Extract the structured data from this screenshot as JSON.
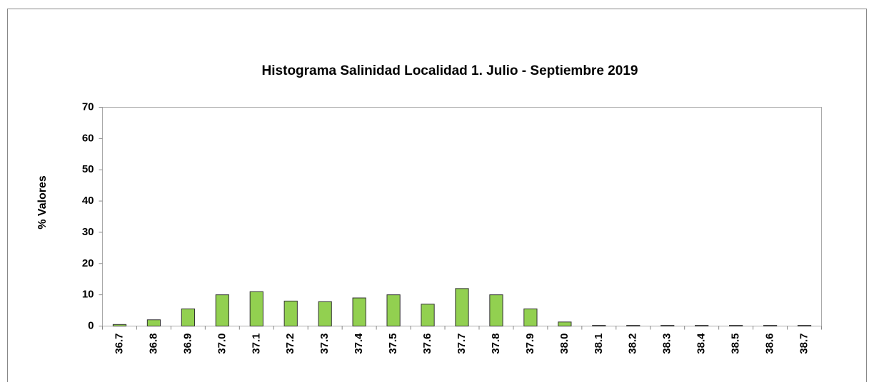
{
  "chart_data": {
    "type": "bar",
    "title": "Histograma Salinidad Localidad 1. Julio - Septiembre 2019",
    "y_label": "% Valores",
    "categories": [
      "36.7",
      "36.8",
      "36.9",
      "37.0",
      "37.1",
      "37.2",
      "37.3",
      "37.4",
      "37.5",
      "37.6",
      "37.7",
      "37.8",
      "37.9",
      "38.0",
      "38.1",
      "38.2",
      "38.3",
      "38.4",
      "38.5",
      "38.6",
      "38.7"
    ],
    "values": [
      0.5,
      2,
      5.5,
      10,
      11,
      8,
      7.8,
      9,
      10,
      7,
      12,
      10,
      5.5,
      1.3,
      0.2,
      0.2,
      0.2,
      0.2,
      0.2,
      0.2,
      0.2
    ],
    "color": "#92d050",
    "ylim": [
      0,
      70
    ],
    "yticks": [
      0,
      10,
      20,
      30,
      40,
      50,
      60,
      70
    ],
    "grid": false
  }
}
